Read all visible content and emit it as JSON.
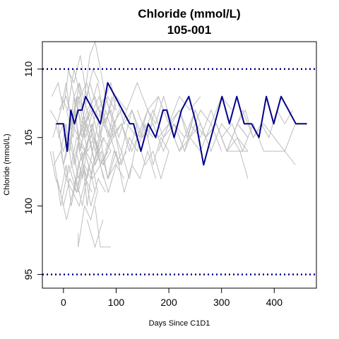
{
  "chart_data": {
    "type": "line",
    "title": "Chloride (mmol/L)",
    "subtitle": "105-001",
    "xlabel": "Days Since C1D1",
    "ylabel": "Chloride (mmol/L)",
    "xlim": [
      -40,
      480
    ],
    "ylim": [
      94,
      112
    ],
    "x_ticks": [
      0,
      100,
      200,
      300,
      400
    ],
    "y_ticks": [
      95,
      100,
      105,
      110
    ],
    "reference_lines": [
      {
        "y": 110,
        "style": "dotted",
        "color": "#00008B"
      },
      {
        "y": 95,
        "style": "dotted",
        "color": "#00008B"
      }
    ],
    "highlight_color": "#00008B",
    "background_color": "#BEBEBE",
    "highlighted_series": {
      "x": [
        -14,
        0,
        7,
        14,
        21,
        28,
        35,
        42,
        56,
        70,
        84,
        98,
        112,
        126,
        133,
        147,
        161,
        175,
        189,
        196,
        210,
        224,
        238,
        252,
        266,
        273,
        287,
        301,
        315,
        329,
        343,
        357,
        371,
        385,
        399,
        413,
        427,
        441,
        462
      ],
      "y": [
        106,
        106,
        104,
        107,
        106,
        107,
        107,
        108,
        107,
        106,
        109,
        108,
        107,
        106,
        106,
        104,
        106,
        105,
        107,
        107,
        105,
        107,
        108,
        106,
        103,
        104,
        106,
        108,
        106,
        108,
        106,
        106,
        105,
        108,
        106,
        108,
        107,
        106,
        106
      ]
    },
    "background_series": [
      {
        "x": [
          -25,
          -10,
          0,
          10,
          20,
          30,
          45,
          60,
          75,
          90
        ],
        "y": [
          107,
          106,
          103,
          105,
          108,
          104,
          106,
          103,
          105,
          104
        ]
      },
      {
        "x": [
          -25,
          -15,
          -5,
          5,
          15,
          25,
          35,
          45,
          55,
          65
        ],
        "y": [
          104,
          102,
          101,
          103,
          100,
          102,
          104,
          100,
          103,
          101
        ]
      },
      {
        "x": [
          -22,
          -10,
          0,
          10,
          20,
          30,
          40,
          50
        ],
        "y": [
          108,
          109,
          107,
          110,
          108,
          109,
          106,
          107
        ]
      },
      {
        "x": [
          -20,
          -5,
          5,
          15,
          25,
          35,
          50,
          65,
          80,
          95
        ],
        "y": [
          105,
          107,
          109,
          106,
          108,
          105,
          107,
          109,
          106,
          108
        ]
      },
      {
        "x": [
          -18,
          -5,
          5,
          18,
          28,
          40,
          55,
          70,
          85,
          100,
          115
        ],
        "y": [
          103,
          104,
          102,
          101,
          103,
          104,
          102,
          103,
          101,
          103,
          102
        ]
      },
      {
        "x": [
          -15,
          0,
          15,
          30,
          45,
          60,
          75,
          90,
          105
        ],
        "y": [
          106,
          104,
          106,
          105,
          107,
          104,
          106,
          105,
          107
        ]
      },
      {
        "x": [
          -12,
          0,
          12,
          25,
          38,
          52,
          66,
          80
        ],
        "y": [
          102,
          100,
          102,
          101,
          103,
          100,
          102,
          101
        ]
      },
      {
        "x": [
          -10,
          0,
          10,
          20,
          30,
          40,
          55,
          70,
          90,
          110,
          130,
          150,
          170
        ],
        "y": [
          105,
          106,
          104,
          107,
          105,
          106,
          104,
          107,
          105,
          106,
          104,
          106,
          105
        ]
      },
      {
        "x": [
          -8,
          5,
          18,
          30,
          45,
          60,
          75,
          90,
          105,
          120
        ],
        "y": [
          107,
          108,
          106,
          109,
          107,
          108,
          106,
          107,
          105,
          107
        ]
      },
      {
        "x": [
          -6,
          6,
          18,
          30,
          42,
          54
        ],
        "y": [
          101,
          99,
          101,
          100,
          102,
          101
        ]
      },
      {
        "x": [
          -5,
          5,
          15,
          25,
          40,
          55,
          70,
          85
        ],
        "y": [
          104,
          106,
          103,
          105,
          104,
          106,
          103,
          104
        ]
      },
      {
        "x": [
          -4,
          8,
          20,
          32,
          44,
          56,
          68,
          80,
          92
        ],
        "y": [
          108,
          107,
          110,
          108,
          109,
          107,
          108,
          106,
          108
        ]
      },
      {
        "x": [
          0,
          14,
          28,
          42,
          56,
          70,
          84,
          98,
          112
        ],
        "y": [
          103,
          105,
          102,
          104,
          103,
          105,
          102,
          103,
          104
        ]
      },
      {
        "x": [
          2,
          12,
          22,
          32,
          42,
          52,
          62,
          72
        ],
        "y": [
          106,
          104,
          107,
          104,
          106,
          105,
          107,
          105
        ]
      },
      {
        "x": [
          4,
          16,
          28,
          40,
          52,
          64,
          76
        ],
        "y": [
          102,
          103,
          101,
          103,
          102,
          104,
          102
        ]
      },
      {
        "x": [
          6,
          18,
          30,
          42,
          54,
          66,
          80,
          95,
          110,
          125
        ],
        "y": [
          107,
          105,
          108,
          106,
          107,
          105,
          108,
          106,
          107,
          106
        ]
      },
      {
        "x": [
          8,
          20,
          32,
          44,
          56,
          68
        ],
        "y": [
          110,
          109,
          111,
          108,
          110,
          109
        ]
      },
      {
        "x": [
          10,
          22,
          34,
          46,
          58,
          70,
          82,
          94
        ],
        "y": [
          105,
          103,
          106,
          104,
          105,
          103,
          104,
          105
        ]
      },
      {
        "x": [
          -20,
          -5,
          10,
          25,
          40,
          55
        ],
        "y": [
          104,
          100,
          103,
          101,
          104,
          102
        ]
      },
      {
        "x": [
          12,
          24,
          36,
          48,
          60
        ],
        "y": [
          100,
          102,
          100,
          103,
          101
        ]
      },
      {
        "x": [
          14,
          28,
          42,
          56,
          70,
          84,
          98
        ],
        "y": [
          106,
          108,
          105,
          107,
          106,
          108,
          107
        ]
      },
      {
        "x": [
          18,
          30,
          42,
          54,
          66,
          78
        ],
        "y": [
          103,
          105,
          104,
          106,
          104,
          105
        ]
      },
      {
        "x": [
          20,
          35,
          50,
          65,
          80,
          95,
          110
        ],
        "y": [
          108,
          106,
          109,
          107,
          108,
          106,
          107
        ]
      },
      {
        "x": [
          24,
          36,
          48,
          60,
          72,
          84,
          96,
          108
        ],
        "y": [
          104,
          102,
          105,
          103,
          104,
          102,
          104,
          103
        ]
      },
      {
        "x": [
          28,
          28,
          40,
          52,
          64
        ],
        "y": [
          98,
          97,
          100,
          99,
          101
        ]
      },
      {
        "x": [
          30,
          45,
          60,
          75,
          90
        ],
        "y": [
          104,
          102,
          105,
          103,
          104
        ]
      },
      {
        "x": [
          40,
          50,
          60,
          70,
          80,
          90,
          100
        ],
        "y": [
          108,
          111,
          112,
          110,
          108,
          109,
          107
        ]
      },
      {
        "x": [
          45,
          60,
          75
        ],
        "y": [
          99,
          97,
          99
        ]
      },
      {
        "x": [
          50,
          65,
          80,
          95,
          110,
          125,
          140
        ],
        "y": [
          106,
          104,
          107,
          105,
          106,
          104,
          106
        ]
      },
      {
        "x": [
          60,
          70,
          80,
          90
        ],
        "y": [
          100,
          97,
          97,
          97
        ]
      },
      {
        "x": [
          60,
          75,
          90,
          105,
          120
        ],
        "y": [
          104,
          103,
          105,
          103,
          104
        ]
      },
      {
        "x": [
          70,
          85,
          100,
          115,
          130,
          145,
          160,
          175,
          190,
          205,
          220,
          235,
          250
        ],
        "y": [
          107,
          105,
          108,
          106,
          107,
          105,
          107,
          106,
          108,
          106,
          107,
          105,
          107
        ]
      },
      {
        "x": [
          80,
          95,
          110,
          125,
          140,
          155,
          170,
          185,
          200
        ],
        "y": [
          104,
          106,
          103,
          105,
          104,
          106,
          103,
          105,
          104
        ]
      },
      {
        "x": [
          85,
          100,
          115,
          130,
          145,
          160,
          175
        ],
        "y": [
          102,
          104,
          101,
          103,
          102,
          104,
          102
        ]
      },
      {
        "x": [
          90,
          110,
          130,
          150,
          170,
          190,
          210,
          230,
          250,
          270,
          290,
          310,
          330,
          350
        ],
        "y": [
          106,
          104,
          107,
          105,
          106,
          104,
          106,
          105,
          107,
          105,
          106,
          104,
          106,
          105
        ]
      },
      {
        "x": [
          100,
          120,
          140,
          160,
          180,
          200,
          220,
          240,
          260
        ],
        "y": [
          108,
          107,
          109,
          107,
          108,
          106,
          108,
          107,
          108
        ]
      },
      {
        "x": [
          110,
          125,
          140,
          155,
          170,
          185,
          200
        ],
        "y": [
          104,
          102,
          105,
          103,
          104,
          102,
          104
        ]
      },
      {
        "x": [
          120,
          140,
          160,
          180,
          200,
          220,
          240,
          260,
          280,
          300,
          320,
          340,
          360,
          380,
          400,
          420,
          440
        ],
        "y": [
          106,
          105,
          107,
          105,
          106,
          104,
          106,
          105,
          107,
          105,
          106,
          104,
          106,
          104,
          104,
          104,
          103
        ]
      },
      {
        "x": [
          140,
          160,
          180,
          200,
          220,
          240,
          260,
          280,
          300,
          320
        ],
        "y": [
          107,
          105,
          108,
          106,
          107,
          105,
          107,
          106,
          108,
          107
        ]
      },
      {
        "x": [
          150,
          170,
          190,
          210,
          230,
          250,
          270
        ],
        "y": [
          105,
          107,
          105,
          106,
          104,
          106,
          105
        ]
      },
      {
        "x": [
          180,
          200,
          220,
          240,
          260,
          280,
          300
        ],
        "y": [
          104,
          106,
          104,
          105,
          104,
          106,
          104
        ]
      },
      {
        "x": [
          210,
          230,
          250,
          270,
          290,
          310,
          330,
          350
        ],
        "y": [
          106,
          104,
          107,
          105,
          106,
          104,
          106,
          105
        ]
      },
      {
        "x": [
          240,
          260,
          280,
          300,
          320,
          340,
          360,
          380,
          400,
          420,
          440
        ],
        "y": [
          105,
          106,
          104,
          106,
          105,
          107,
          105,
          106,
          105,
          104,
          106
        ]
      },
      {
        "x": [
          270,
          290,
          310,
          330,
          350
        ],
        "y": [
          105,
          106,
          104,
          105,
          104
        ]
      },
      {
        "x": [
          300,
          310,
          320,
          330,
          340,
          350
        ],
        "y": [
          105,
          104,
          104,
          104,
          104,
          104
        ]
      },
      {
        "x": [
          320,
          335,
          350
        ],
        "y": [
          105,
          104,
          102
        ]
      },
      {
        "x": [
          330,
          345,
          360,
          375,
          390,
          405,
          420,
          435
        ],
        "y": [
          106,
          107,
          105,
          106,
          105,
          107,
          106,
          107
        ]
      }
    ]
  }
}
